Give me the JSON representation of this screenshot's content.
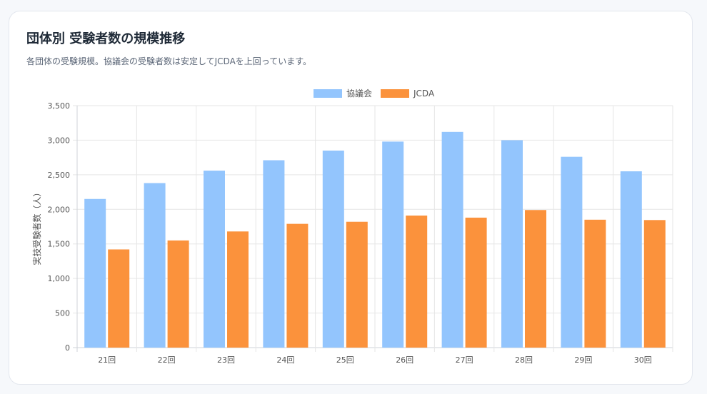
{
  "header": {
    "title": "団体別 受験者数の規模推移",
    "subtitle": "各団体の受験規模。協議会の受験者数は安定してJCDAを上回っています。"
  },
  "chart_data": {
    "type": "bar",
    "categories": [
      "21回",
      "22回",
      "23回",
      "24回",
      "25回",
      "26回",
      "27回",
      "28回",
      "29回",
      "30回"
    ],
    "series": [
      {
        "name": "協議会",
        "color": "#93c5fd",
        "values": [
          2150,
          2380,
          2560,
          2710,
          2850,
          2980,
          3120,
          3000,
          2760,
          2550
        ]
      },
      {
        "name": "JCDA",
        "color": "#fb923c",
        "values": [
          1420,
          1550,
          1680,
          1790,
          1820,
          1910,
          1880,
          1990,
          1850,
          1845
        ]
      }
    ],
    "title": "",
    "xlabel": "",
    "ylabel": "実技受験者数（人）",
    "ylim": [
      0,
      3500
    ],
    "yticks": [
      0,
      500,
      1000,
      1500,
      2000,
      2500,
      3000,
      3500
    ],
    "yticklabels": [
      "0",
      "500",
      "1,000",
      "1,500",
      "2,000",
      "2,500",
      "3,000",
      "3,500"
    ],
    "grid": true,
    "legend": "top-center"
  }
}
